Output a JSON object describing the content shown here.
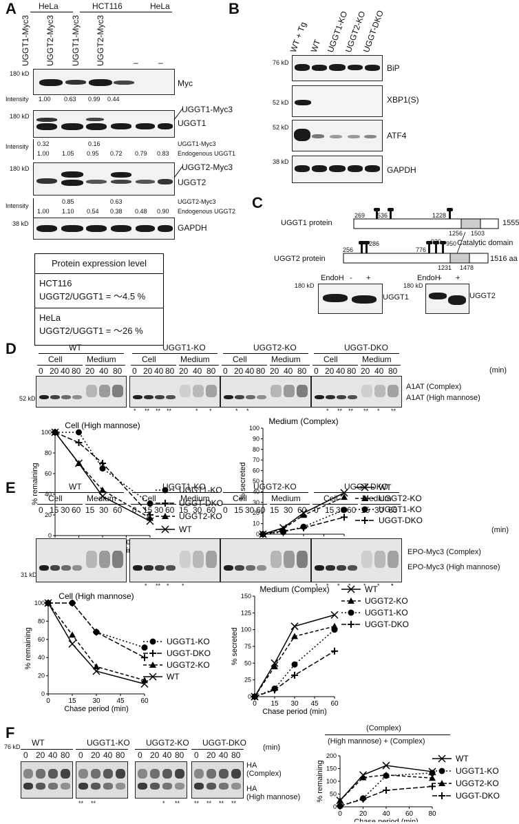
{
  "panels": {
    "A": "A",
    "B": "B",
    "C": "C",
    "D": "D",
    "E": "E",
    "F": "F"
  },
  "panelA": {
    "cell_lines": [
      "HeLa",
      "HCT116",
      "HeLa"
    ],
    "lanes": [
      "UGGT1-Myc3",
      "UGGT2-Myc3",
      "UGGT1-Myc3",
      "UGGT2-Myc3",
      "–",
      "–"
    ],
    "marker_180": "180 kD",
    "marker_38": "38 kD",
    "myc": "Myc",
    "uggt1": "UGGT1",
    "uggt1_myc3": "UGGT1-Myc3",
    "uggt2": "UGGT2",
    "uggt2_myc3": "UGGT2-Myc3",
    "gapdh": "GAPDH",
    "intensity": "Intensity",
    "myc_values": [
      "1.00",
      "0.63",
      "0.99",
      "0.44"
    ],
    "uggt1_myc_values": [
      "0.32",
      "",
      "0.16"
    ],
    "uggt1_myc_caption": "UGGT1-Myc3",
    "uggt1_endo_values": [
      "1.00",
      "1.05",
      "0.95",
      "0.72",
      "0.79",
      "0.83"
    ],
    "uggt1_endo_caption": "Endogenous UGGT1",
    "uggt2_myc_values": [
      "",
      "0.85",
      "",
      "0.63"
    ],
    "uggt2_myc_caption": "UGGT2-Myc3",
    "uggt2_endo_values": [
      "1.00",
      "1.10",
      "0.54",
      "0.38",
      "0.48",
      "0.90"
    ],
    "uggt2_endo_caption": "Endogenous UGGT2",
    "box_title": "Protein expression level",
    "box_hct_line": "HCT116",
    "box_hct_ratio": "UGGT2/UGGT1 = ～4.5 %",
    "box_hela_line": "HeLa",
    "box_hela_ratio": "UGGT2/UGGT1 = ～26 %"
  },
  "panelB": {
    "lanes": [
      "WT + Tg",
      "WT",
      "UGGT1-KO",
      "UGGT2-KO",
      "UGGT-DKO"
    ],
    "m76": "76 kD",
    "m52a": "52 kD",
    "m52b": "52 kD",
    "m38": "38 kD",
    "bip": "BiP",
    "xbp1": "XBP1(S)",
    "atf4": "ATF4",
    "gapdh": "GAPDH"
  },
  "panelC": {
    "uggt1_label": "UGGT1 protein",
    "uggt1_len": "1555 aa",
    "uggt1_sites": [
      "269",
      "536",
      "1228"
    ],
    "uggt1_cat": [
      "1256",
      "1503"
    ],
    "catalytic": "Catalytic domain",
    "uggt2_label": "UGGT2 protein",
    "uggt2_len": "1516 aa",
    "uggt2_sites": [
      "256",
      "286",
      "776",
      "920",
      "950"
    ],
    "uggt2_cat": [
      "1231",
      "1478"
    ],
    "endoh": "EndoH",
    "minus": "-",
    "plus": "+",
    "m180a": "180 kD",
    "m180b": "180 kD",
    "uggt1_blot": "UGGT1",
    "uggt2_blot": "UGGT2"
  },
  "panelD": {
    "groups": [
      "WT",
      "UGGT1-KO",
      "UGGT2-KO",
      "UGGT-DKO"
    ],
    "cell": "Cell",
    "medium": "Medium",
    "cell_times": [
      "0",
      "20",
      "40",
      "80"
    ],
    "med_times": [
      "20",
      "40",
      "80"
    ],
    "min": "(min)",
    "complex": "A1AT (Complex)",
    "highman": "A1AT (High mannose)",
    "marker": "52 kD",
    "stars": [
      "*",
      "**",
      "**",
      "**",
      "*",
      "*",
      "*",
      "*",
      "*",
      "**",
      "**",
      "**",
      "*",
      "**"
    ]
  },
  "panelE": {
    "groups": [
      "WT",
      "UGGT1-KO",
      "UGGT2-KO",
      "UGGT-DKO"
    ],
    "cell": "Cell",
    "medium": "Medium",
    "cell_times": [
      "0",
      "15",
      "30",
      "60"
    ],
    "med_times": [
      "15",
      "30",
      "60"
    ],
    "min": "(min)",
    "complex": "EPO-Myc3 (Complex)",
    "highman": "EPO-Myc3 (High mannose)",
    "marker": "31 kD",
    "stars": [
      "*",
      "**",
      "*",
      "*",
      "*",
      "*",
      "*",
      "*",
      "*",
      "*",
      "*",
      "*"
    ]
  },
  "panelF": {
    "groups": [
      "WT",
      "UGGT1-KO",
      "UGGT2-KO",
      "UGGT-DKO"
    ],
    "times": [
      "0",
      "20",
      "40",
      "80"
    ],
    "min": "(min)",
    "marker": "76 kD",
    "ha_complex": "HA",
    "ha_complex2": "(Complex)",
    "ha_high": "HA",
    "ha_high2": "(High mannose)",
    "stars": [
      "**",
      "**",
      "*",
      "**",
      "**",
      "**",
      "**",
      "**"
    ],
    "frac_top": "(Complex)",
    "frac_bottom": "(High mannose) + (Complex)"
  },
  "chart_data": [
    {
      "type": "line",
      "title": "Cell (High mannose)",
      "xlabel": "Chase period (min)",
      "ylabel": "% remaining",
      "x": [
        0,
        20,
        40,
        80
      ],
      "xlim": [
        0,
        80
      ],
      "ylim": [
        0,
        100
      ],
      "xticks": [
        0,
        20,
        40,
        60,
        80
      ],
      "yticks": [
        0,
        20,
        40,
        60,
        80,
        100
      ],
      "series": [
        {
          "name": "UGGT1-KO",
          "marker": "circle",
          "dash": "2,3",
          "values": [
            100,
            100,
            65,
            31
          ]
        },
        {
          "name": "UGGT-DKO",
          "marker": "plus",
          "dash": "7,3",
          "values": [
            100,
            90,
            70,
            20
          ]
        },
        {
          "name": "UGGT2-KO",
          "marker": "triangle",
          "dash": "5,3",
          "values": [
            100,
            70,
            44,
            17
          ]
        },
        {
          "name": "WT",
          "marker": "x",
          "dash": "",
          "values": [
            100,
            70,
            38,
            14
          ]
        }
      ]
    },
    {
      "type": "line",
      "title": "Medium (Complex)",
      "xlabel": "Chase period (min)",
      "ylabel": "% secreted",
      "x": [
        0,
        20,
        40,
        80
      ],
      "xlim": [
        0,
        80
      ],
      "ylim": [
        0,
        100
      ],
      "xticks": [
        0,
        20,
        40,
        60,
        80
      ],
      "yticks": [
        0,
        10,
        20,
        30,
        40,
        50,
        60,
        70,
        80,
        90,
        100
      ],
      "series": [
        {
          "name": "WT",
          "marker": "x",
          "dash": "",
          "values": [
            0,
            6,
            20,
            39
          ]
        },
        {
          "name": "UGGT2-KO",
          "marker": "triangle",
          "dash": "5,3",
          "values": [
            0,
            5,
            18,
            35
          ]
        },
        {
          "name": "UGGT1-KO",
          "marker": "circle",
          "dash": "2,3",
          "values": [
            0,
            2,
            7,
            23
          ]
        },
        {
          "name": "UGGT-DKO",
          "marker": "plus",
          "dash": "7,3",
          "values": [
            0,
            3,
            6,
            16
          ]
        }
      ]
    },
    {
      "type": "line",
      "title": "Cell (High mannose)",
      "xlabel": "Chase period (min)",
      "ylabel": "% remaining",
      "x": [
        0,
        15,
        30,
        60
      ],
      "xlim": [
        0,
        60
      ],
      "ylim": [
        0,
        100
      ],
      "xticks": [
        0,
        15,
        30,
        45,
        60
      ],
      "yticks": [
        0,
        20,
        40,
        60,
        80,
        100
      ],
      "series": [
        {
          "name": "UGGT1-KO",
          "marker": "circle",
          "dash": "2,3",
          "values": [
            100,
            100,
            68,
            51
          ]
        },
        {
          "name": "UGGT-DKO",
          "marker": "plus",
          "dash": "7,3",
          "values": [
            100,
            100,
            68,
            40
          ]
        },
        {
          "name": "UGGT2-KO",
          "marker": "triangle",
          "dash": "5,3",
          "values": [
            100,
            65,
            30,
            15
          ]
        },
        {
          "name": "WT",
          "marker": "x",
          "dash": "",
          "values": [
            100,
            55,
            25,
            11
          ]
        }
      ]
    },
    {
      "type": "line",
      "title": "Medium (Complex)",
      "xlabel": "Chase period (min)",
      "ylabel": "% secreted",
      "x": [
        0,
        15,
        30,
        60
      ],
      "xlim": [
        0,
        60
      ],
      "ylim": [
        0,
        150
      ],
      "xticks": [
        0,
        15,
        30,
        45,
        60
      ],
      "yticks": [
        0,
        25,
        50,
        75,
        100,
        125,
        150
      ],
      "series": [
        {
          "name": "WT",
          "marker": "x",
          "dash": "",
          "values": [
            0,
            50,
            105,
            122
          ]
        },
        {
          "name": "UGGT2-KO",
          "marker": "triangle",
          "dash": "5,3",
          "values": [
            0,
            45,
            90,
            105
          ]
        },
        {
          "name": "UGGT1-KO",
          "marker": "circle",
          "dash": "2,3",
          "values": [
            0,
            12,
            48,
            100
          ]
        },
        {
          "name": "UGGT-DKO",
          "marker": "plus",
          "dash": "7,3",
          "values": [
            0,
            10,
            32,
            68
          ]
        }
      ]
    },
    {
      "type": "line",
      "title": "",
      "xlabel": "Chase period (min)",
      "ylabel": "% remaining",
      "x": [
        0,
        20,
        40,
        80
      ],
      "xlim": [
        0,
        80
      ],
      "ylim": [
        0,
        200
      ],
      "xticks": [
        0,
        20,
        40,
        60,
        80
      ],
      "yticks": [
        0,
        50,
        100,
        150,
        200
      ],
      "series": [
        {
          "name": "WT",
          "marker": "x",
          "dash": "",
          "values": [
            25,
            125,
            162,
            138
          ]
        },
        {
          "name": "UGGT1-KO",
          "marker": "circle",
          "dash": "2,3",
          "values": [
            3,
            33,
            122,
            133
          ]
        },
        {
          "name": "UGGT2-KO",
          "marker": "triangle",
          "dash": "5,3",
          "values": [
            25,
            115,
            125,
            113
          ]
        },
        {
          "name": "UGGT-DKO",
          "marker": "plus",
          "dash": "7,3",
          "values": [
            3,
            30,
            65,
            80
          ]
        }
      ]
    }
  ]
}
